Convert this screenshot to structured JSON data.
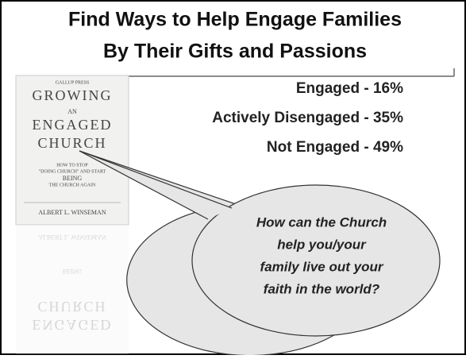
{
  "slide": {
    "title_lines": [
      "Find Ways to Help Engage Families",
      "By Their Gifts and Passions"
    ],
    "stats": [
      "Engaged - 16%",
      "Actively Disengaged - 35%",
      "Not Engaged - 49%"
    ],
    "book": {
      "publisher": "GALLUP PRESS",
      "title_lines": [
        "GROWING",
        "AN",
        "ENGAGED",
        "CHURCH"
      ],
      "subtitle_lines": [
        "HOW TO STOP",
        "\"DOING CHURCH\" AND START",
        "BEING",
        "THE CHURCH AGAIN"
      ],
      "author": "ALBERT L. WINSEMAN"
    },
    "bubble_lines": [
      "How can the Church",
      "help you/your",
      "family live out your",
      "faith in the world?"
    ]
  }
}
